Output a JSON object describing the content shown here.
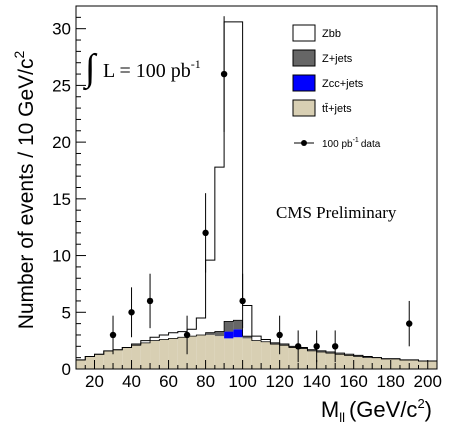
{
  "chart_data": {
    "type": "bar",
    "xlabel": "M",
    "xlabel_sub": "ll",
    "xlabel_unit": "(GeV/c",
    "xlabel_unit_sup": "2",
    "xlabel_close": ")",
    "ylabel": "Number of events / 10 GeV/c",
    "ylabel_sup": "2",
    "xlim": [
      10,
      205
    ],
    "ylim": [
      0,
      32
    ],
    "xticks": [
      "20",
      "40",
      "60",
      "80",
      "100",
      "120",
      "140",
      "160",
      "180",
      "200"
    ],
    "yticks": [
      "0",
      "5",
      "10",
      "15",
      "20",
      "25",
      "30"
    ],
    "bin_edges": [
      10,
      15,
      20,
      25,
      30,
      35,
      40,
      45,
      50,
      55,
      60,
      65,
      70,
      75,
      80,
      85,
      90,
      95,
      100,
      105,
      110,
      115,
      120,
      125,
      130,
      135,
      140,
      145,
      150,
      155,
      160,
      165,
      170,
      175,
      180,
      185,
      190,
      195,
      200,
      205
    ],
    "stacks": [
      {
        "name": "tt̄+jets",
        "color": "#d8cfb3",
        "values": [
          0.8,
          1.1,
          1.3,
          1.6,
          1.7,
          1.9,
          2.1,
          2.3,
          2.5,
          2.6,
          2.7,
          2.8,
          2.9,
          3.0,
          3.0,
          2.9,
          2.7,
          2.8,
          2.7,
          2.5,
          2.4,
          2.2,
          2.1,
          1.9,
          1.8,
          1.6,
          1.5,
          1.4,
          1.3,
          1.2,
          1.1,
          1.0,
          1.0,
          0.9,
          0.9,
          0.8,
          0.8,
          0.7,
          0.7
        ]
      },
      {
        "name": "Zcc+jets",
        "color": "#0000ff",
        "values": [
          0,
          0,
          0,
          0,
          0,
          0,
          0,
          0,
          0,
          0,
          0,
          0,
          0,
          0,
          0,
          0,
          0.6,
          0.7,
          0,
          0,
          0,
          0,
          0,
          0,
          0,
          0,
          0,
          0,
          0,
          0,
          0,
          0,
          0,
          0,
          0,
          0,
          0,
          0,
          0
        ]
      },
      {
        "name": "Z+jets",
        "color": "#666666",
        "values": [
          0,
          0,
          0,
          0,
          0,
          0,
          0,
          0,
          0,
          0,
          0,
          0,
          0,
          0,
          0.2,
          0.4,
          0.9,
          0.8,
          0.2,
          0,
          0,
          0,
          0,
          0,
          0,
          0,
          0,
          0,
          0,
          0,
          0,
          0,
          0,
          0,
          0,
          0,
          0,
          0,
          0
        ]
      }
    ],
    "total_line": {
      "name": "Zbb",
      "values": [
        0.8,
        1.1,
        1.3,
        1.6,
        1.7,
        1.9,
        2.2,
        2.5,
        2.8,
        3.0,
        3.2,
        3.3,
        3.5,
        4.5,
        9.6,
        17.8,
        30.6,
        30.6,
        5.6,
        2.9,
        2.6,
        2.3,
        2.2,
        2.0,
        1.9,
        1.7,
        1.6,
        1.5,
        1.4,
        1.3,
        1.2,
        1.1,
        1.0,
        0.9,
        0.9,
        0.8,
        0.8,
        0.7,
        0.7
      ]
    },
    "data_points": {
      "name": "100 pb",
      "x": [
        30,
        40,
        50,
        70,
        80,
        90,
        100,
        120,
        130,
        140,
        150,
        190
      ],
      "y": [
        3,
        5,
        6,
        3,
        12,
        26,
        6,
        3,
        2,
        2,
        2,
        4
      ],
      "err": [
        1.7,
        2.2,
        2.4,
        1.7,
        3.5,
        5.1,
        2.4,
        1.7,
        1.4,
        1.4,
        1.4,
        2.0
      ]
    },
    "legend": [
      {
        "label": "Zbb",
        "style": "box",
        "color": "#ffffff"
      },
      {
        "label": "Z+jets",
        "style": "box",
        "color": "#666666"
      },
      {
        "label": "Zcc+jets",
        "style": "box",
        "color": "#0000ff"
      },
      {
        "label": "tt̄+jets",
        "style": "box",
        "color": "#d8cfb3"
      },
      {
        "label": "100 pb",
        "label_sup": "-1",
        "label_tail": "data",
        "style": "marker",
        "color": "#000000"
      }
    ],
    "annotations": {
      "lumi": "L = 100 pb",
      "lumi_sup": "-1",
      "preliminary": "CMS Preliminary"
    },
    "legend_position": "top-right",
    "grid": false
  }
}
